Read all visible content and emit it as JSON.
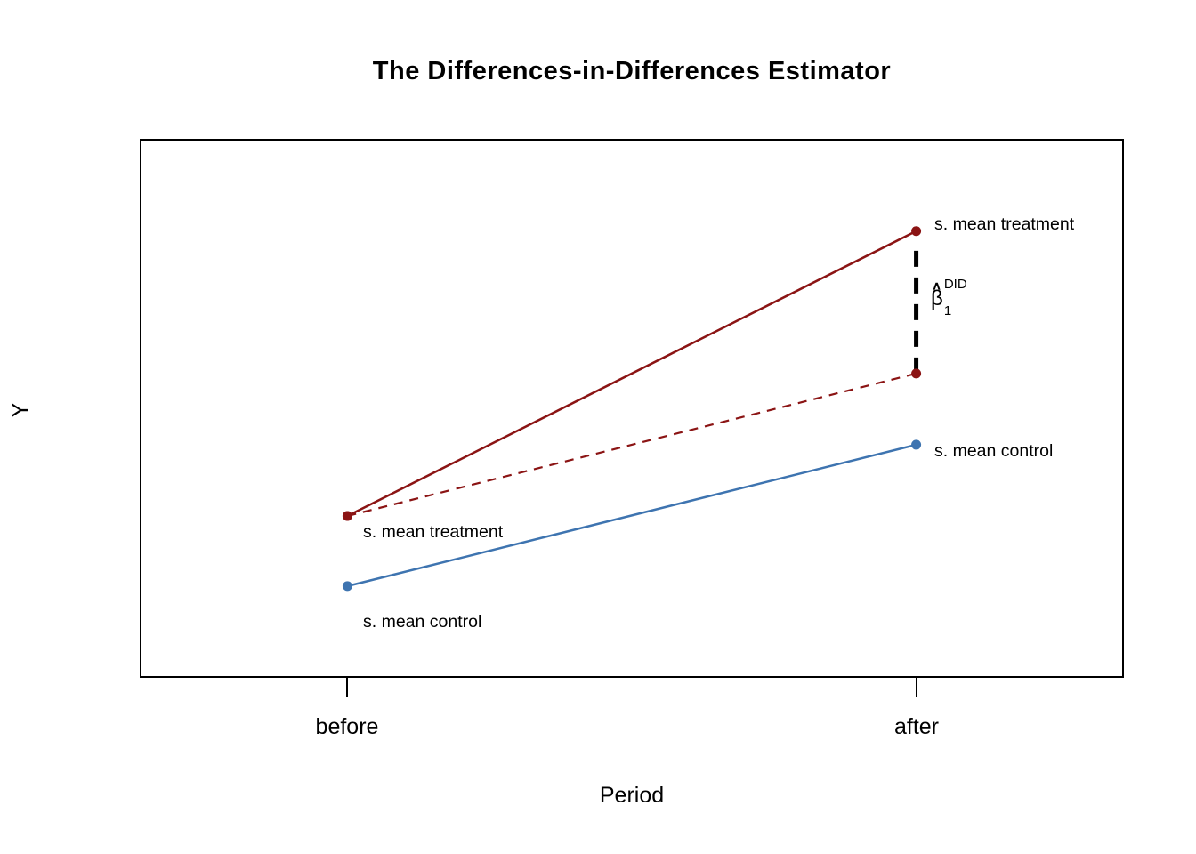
{
  "chart_data": {
    "type": "line",
    "title": "The Differences-in-Differences Estimator",
    "xlabel": "Period",
    "ylabel": "Y",
    "x_categories": [
      "before",
      "after"
    ],
    "x_positions": [
      0.21,
      0.79
    ],
    "ylim": [
      0,
      1
    ],
    "grid": false,
    "legend": "none",
    "series": [
      {
        "name": "sample-mean-treatment",
        "color": "#8B1414",
        "style": "solid",
        "marker": true,
        "values": [
          0.299,
          0.831
        ]
      },
      {
        "name": "counterfactual-trend",
        "color": "#8B1414",
        "style": "dashed",
        "marker": true,
        "values": [
          0.299,
          0.565
        ]
      },
      {
        "name": "sample-mean-control",
        "color": "#3E74B0",
        "style": "solid",
        "marker": true,
        "values": [
          0.168,
          0.432
        ]
      }
    ],
    "annotation_line": {
      "x": 0.79,
      "y_from": 0.565,
      "y_to": 0.809,
      "color": "#000000",
      "style": "dashed-bold"
    }
  },
  "labels": {
    "treatment_after": "s. mean treatment",
    "treatment_before": "s. mean treatment",
    "control_after": "s. mean control",
    "control_before": "s. mean control",
    "beta_hat": "∧",
    "beta_base": "β",
    "beta_sub": "1",
    "beta_sup": "DID"
  }
}
